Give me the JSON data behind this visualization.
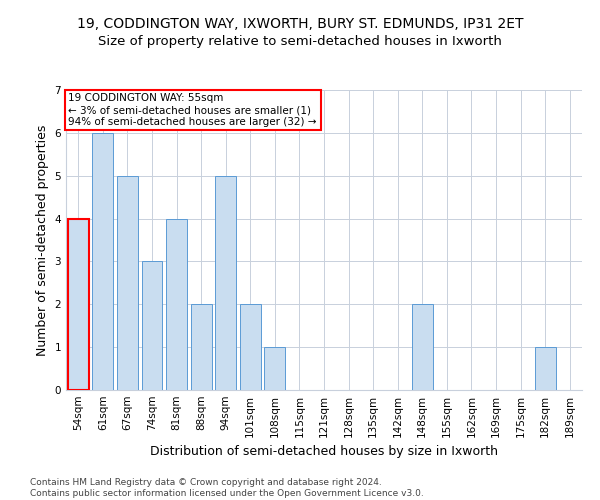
{
  "title_line1": "19, CODDINGTON WAY, IXWORTH, BURY ST. EDMUNDS, IP31 2ET",
  "title_line2": "Size of property relative to semi-detached houses in Ixworth",
  "xlabel": "Distribution of semi-detached houses by size in Ixworth",
  "ylabel": "Number of semi-detached properties",
  "footnote": "Contains HM Land Registry data © Crown copyright and database right 2024.\nContains public sector information licensed under the Open Government Licence v3.0.",
  "categories": [
    "54sqm",
    "61sqm",
    "67sqm",
    "74sqm",
    "81sqm",
    "88sqm",
    "94sqm",
    "101sqm",
    "108sqm",
    "115sqm",
    "121sqm",
    "128sqm",
    "135sqm",
    "142sqm",
    "148sqm",
    "155sqm",
    "162sqm",
    "169sqm",
    "175sqm",
    "182sqm",
    "189sqm"
  ],
  "values": [
    4,
    6,
    5,
    3,
    4,
    2,
    5,
    2,
    1,
    0,
    0,
    0,
    0,
    0,
    2,
    0,
    0,
    0,
    0,
    1,
    0
  ],
  "bar_color": "#c9ddf0",
  "bar_edgecolor": "#5b9bd5",
  "highlight_bar_index": 0,
  "highlight_bar_edgecolor": "#ff0000",
  "annotation_text": "19 CODDINGTON WAY: 55sqm\n← 3% of semi-detached houses are smaller (1)\n94% of semi-detached houses are larger (32) →",
  "annotation_box_edgecolor": "#ff0000",
  "ylim": [
    0,
    7
  ],
  "yticks": [
    0,
    1,
    2,
    3,
    4,
    5,
    6,
    7
  ],
  "grid_color": "#c8d0dc",
  "background_color": "#ffffff",
  "title_fontsize": 10,
  "subtitle_fontsize": 9.5,
  "axis_label_fontsize": 9,
  "tick_fontsize": 7.5,
  "annotation_fontsize": 7.5,
  "footnote_fontsize": 6.5
}
